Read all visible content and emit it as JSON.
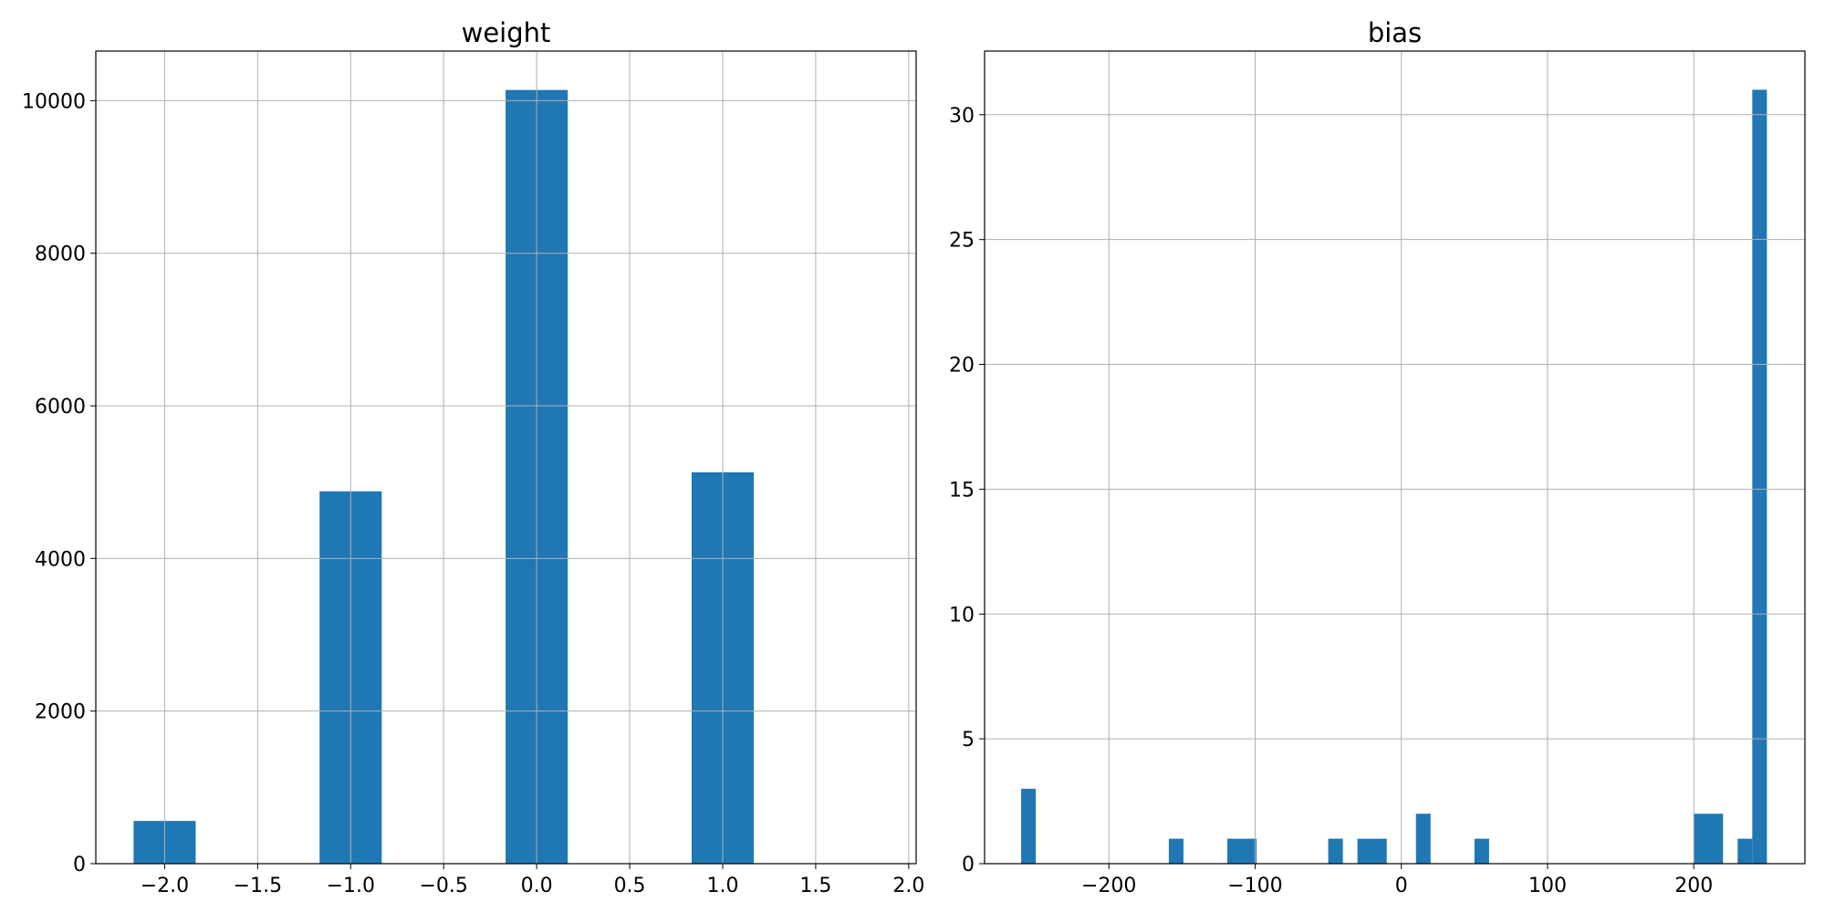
{
  "colors": {
    "bar": "#1f77b4",
    "grid": "#b0b0b0"
  },
  "chart_data": [
    {
      "type": "bar",
      "title": "weight",
      "grid": true,
      "xlim": [
        -2.37,
        2.04
      ],
      "ylim": [
        0,
        10650
      ],
      "xticks": [
        -2.0,
        -1.5,
        -1.0,
        -0.5,
        0.0,
        0.5,
        1.0,
        1.5,
        2.0
      ],
      "xtick_labels": [
        "−2.0",
        "−1.5",
        "−1.0",
        "−0.5",
        "0.0",
        "0.5",
        "1.0",
        "1.5",
        "2.0"
      ],
      "yticks": [
        0,
        2000,
        4000,
        6000,
        8000,
        10000
      ],
      "ytick_labels": [
        "0",
        "2000",
        "4000",
        "6000",
        "8000",
        "10000"
      ],
      "bins": [
        {
          "x0": -2.167,
          "x1": -1.833,
          "value": 560
        },
        {
          "x0": -1.167,
          "x1": -0.833,
          "value": 4880
        },
        {
          "x0": -0.167,
          "x1": 0.167,
          "value": 10140
        },
        {
          "x0": 0.833,
          "x1": 1.167,
          "value": 5130
        }
      ]
    },
    {
      "type": "bar",
      "title": "bias",
      "grid": true,
      "xlim": [
        -285,
        276
      ],
      "ylim": [
        0,
        32.55
      ],
      "xticks": [
        -200,
        -100,
        0,
        100,
        200
      ],
      "xtick_labels": [
        "−200",
        "−100",
        "0",
        "100",
        "200"
      ],
      "yticks": [
        0,
        5,
        10,
        15,
        20,
        25,
        30
      ],
      "ytick_labels": [
        "0",
        "5",
        "10",
        "15",
        "20",
        "25",
        "30"
      ],
      "bins": [
        {
          "x0": -260,
          "x1": -250,
          "value": 3
        },
        {
          "x0": -159,
          "x1": -149,
          "value": 1
        },
        {
          "x0": -119,
          "x1": -99,
          "value": 1
        },
        {
          "x0": -50,
          "x1": -40,
          "value": 1
        },
        {
          "x0": -30,
          "x1": -10,
          "value": 1
        },
        {
          "x0": 10,
          "x1": 20,
          "value": 2
        },
        {
          "x0": 50,
          "x1": 60,
          "value": 1
        },
        {
          "x0": 200,
          "x1": 220,
          "value": 2
        },
        {
          "x0": 230,
          "x1": 240,
          "value": 1
        },
        {
          "x0": 240,
          "x1": 250,
          "value": 31
        }
      ]
    }
  ]
}
